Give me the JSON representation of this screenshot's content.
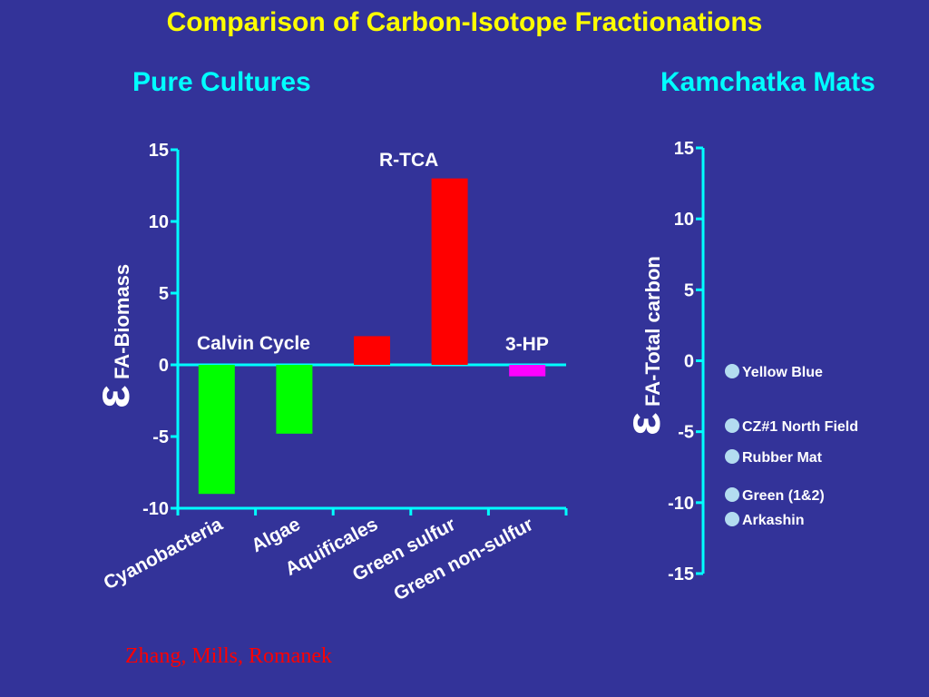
{
  "slide": {
    "title": "Comparison of Carbon-Isotope Fractionations",
    "credit": "Zhang, Mills, Romanek"
  },
  "colors": {
    "background": "#333399",
    "title": "#ffff00",
    "subtitle": "#00ffff",
    "axis": "#00ffff",
    "text": "#ffffff",
    "credit": "#ff0000"
  },
  "chart_data": [
    {
      "type": "bar",
      "title": "Pure Cultures",
      "ylabel_symbol": "ε",
      "ylabel_sub": "FA-Biomass",
      "ylim": [
        -10,
        15
      ],
      "yticks": [
        "15",
        "10",
        "5",
        "0",
        "-5",
        "-10"
      ],
      "ytick_values": [
        15,
        10,
        5,
        0,
        -5,
        -10
      ],
      "categories": [
        "Cyanobacteria",
        "Algae",
        "Aquificales",
        "Green sulfur",
        "Green non-sulfur"
      ],
      "values": [
        -9,
        -4.8,
        2,
        13,
        -0.8
      ],
      "bar_colors": [
        "#00ff00",
        "#00ff00",
        "#ff0000",
        "#ff0000",
        "#ff00ff"
      ],
      "annotations": [
        {
          "text": "Calvin Cycle",
          "near": "Cyanobacteria/Algae"
        },
        {
          "text": "R-TCA",
          "near": "Green sulfur"
        },
        {
          "text": "3-HP",
          "near": "Green non-sulfur"
        }
      ],
      "grid": false
    },
    {
      "type": "scatter",
      "title": "Kamchatka Mats",
      "ylabel_symbol": "ε",
      "ylabel_sub": "FA-Total carbon",
      "ylim": [
        -15,
        15
      ],
      "yticks": [
        "15",
        "10",
        "5",
        "0",
        "-5",
        "-10",
        "-15"
      ],
      "ytick_values": [
        15,
        10,
        5,
        0,
        -5,
        -10,
        -15
      ],
      "legend": [
        {
          "name": "Yellow Blue",
          "color": "#b3dcf0"
        },
        {
          "name": "CZ#1 North Field",
          "color": "#b3dcf0"
        },
        {
          "name": "Rubber Mat",
          "color": "#b3dcf0"
        },
        {
          "name": "Green (1&2)",
          "color": "#b3dcf0"
        },
        {
          "name": "Arkashin",
          "color": "#b3dcf0"
        }
      ],
      "grid": false
    }
  ]
}
